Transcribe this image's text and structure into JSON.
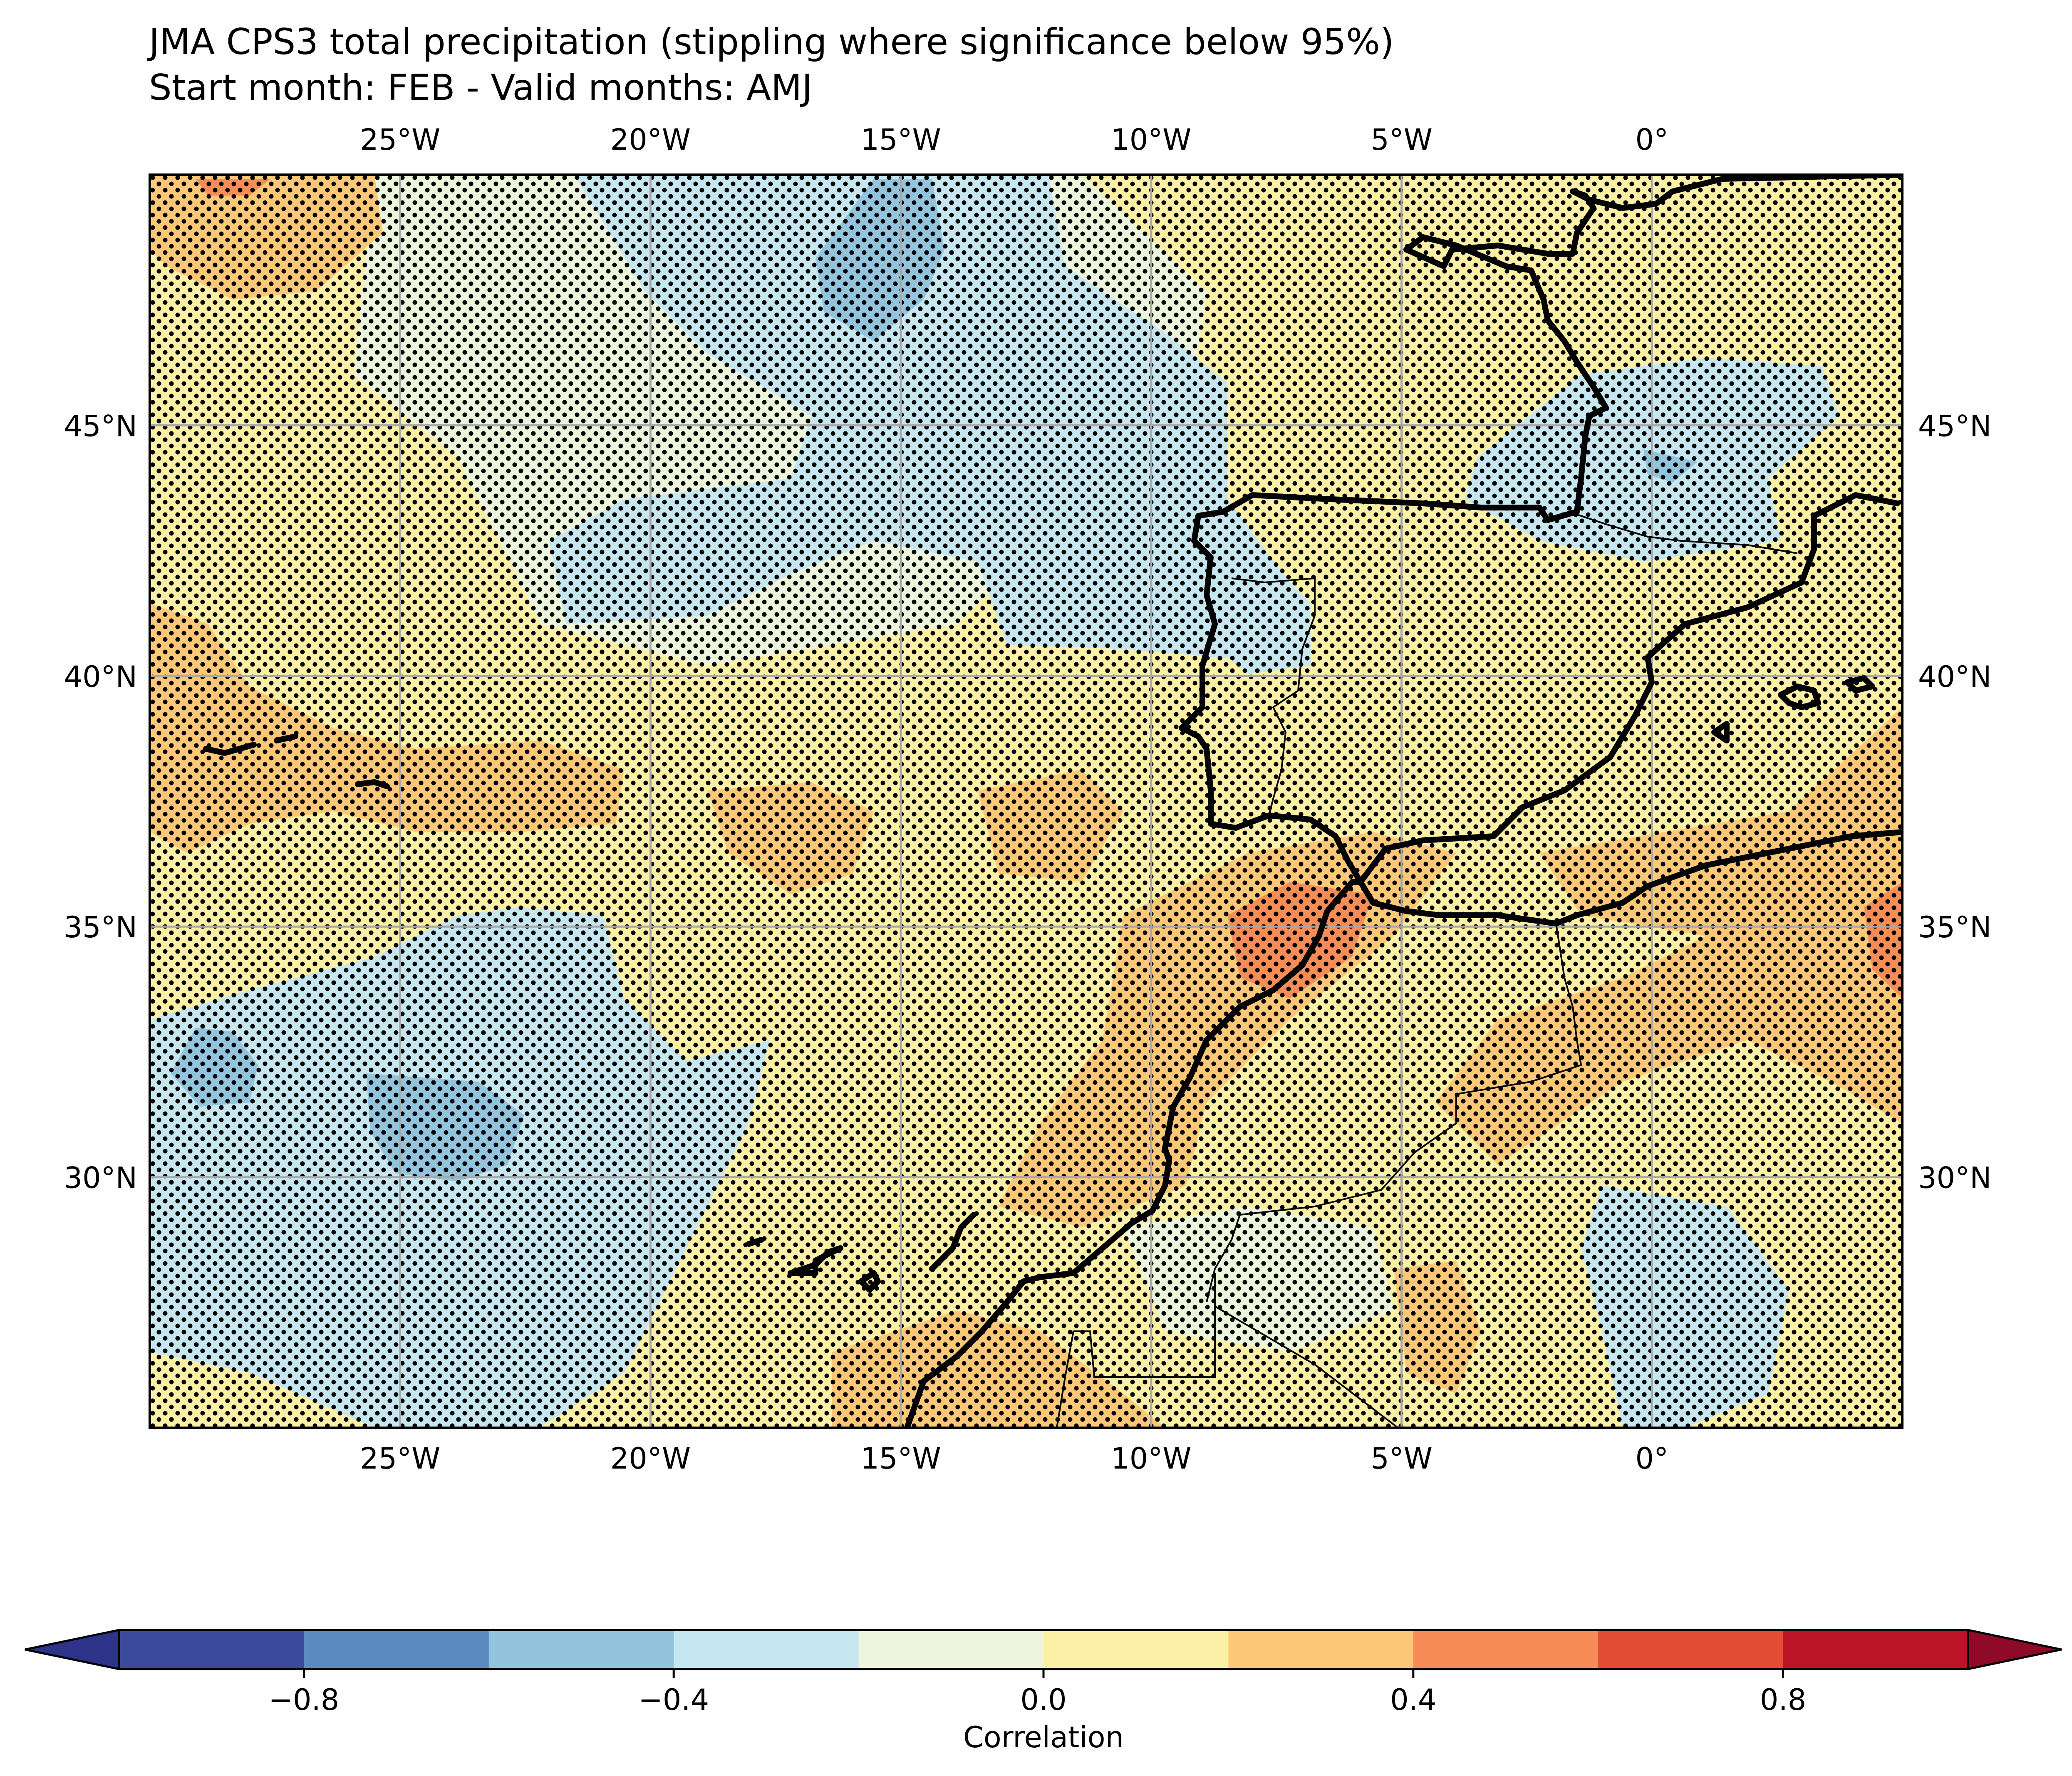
{
  "title": {
    "line1": "JMA CPS3 total precipitation (stippling where significance below 95%)",
    "line2": "Start month: FEB - Valid months: AMJ"
  },
  "map": {
    "lon_range": [
      -30,
      5
    ],
    "lat_range": [
      25,
      50
    ],
    "lon_ticks": [
      {
        "value": -25,
        "label": "25°W"
      },
      {
        "value": -20,
        "label": "20°W"
      },
      {
        "value": -15,
        "label": "15°W"
      },
      {
        "value": -10,
        "label": "10°W"
      },
      {
        "value": -5,
        "label": "5°W"
      },
      {
        "value": 0,
        "label": "0°"
      }
    ],
    "lat_ticks": [
      {
        "value": 45,
        "label": "45°N"
      },
      {
        "value": 40,
        "label": "40°N"
      },
      {
        "value": 35,
        "label": "35°N"
      },
      {
        "value": 30,
        "label": "30°N"
      }
    ],
    "gridlines": true,
    "stippling": "significance below 95%"
  },
  "colorbar": {
    "label": "Correlation",
    "range": [
      -1.0,
      1.0
    ],
    "extend": "both",
    "colors": [
      "#3b4a9a",
      "#5b8ac0",
      "#92c4de",
      "#c6e6f0",
      "#edf6dc",
      "#fbf0a5",
      "#fcc877",
      "#f68c56",
      "#e34d35",
      "#bb1427"
    ],
    "under_color": "#2c3389",
    "over_color": "#8e0a26",
    "ticks": [
      {
        "value": -0.8,
        "label": "−0.8"
      },
      {
        "value": -0.4,
        "label": "−0.4"
      },
      {
        "value": 0.0,
        "label": "0.0"
      },
      {
        "value": 0.4,
        "label": "0.4"
      },
      {
        "value": 0.8,
        "label": "0.8"
      }
    ]
  }
}
